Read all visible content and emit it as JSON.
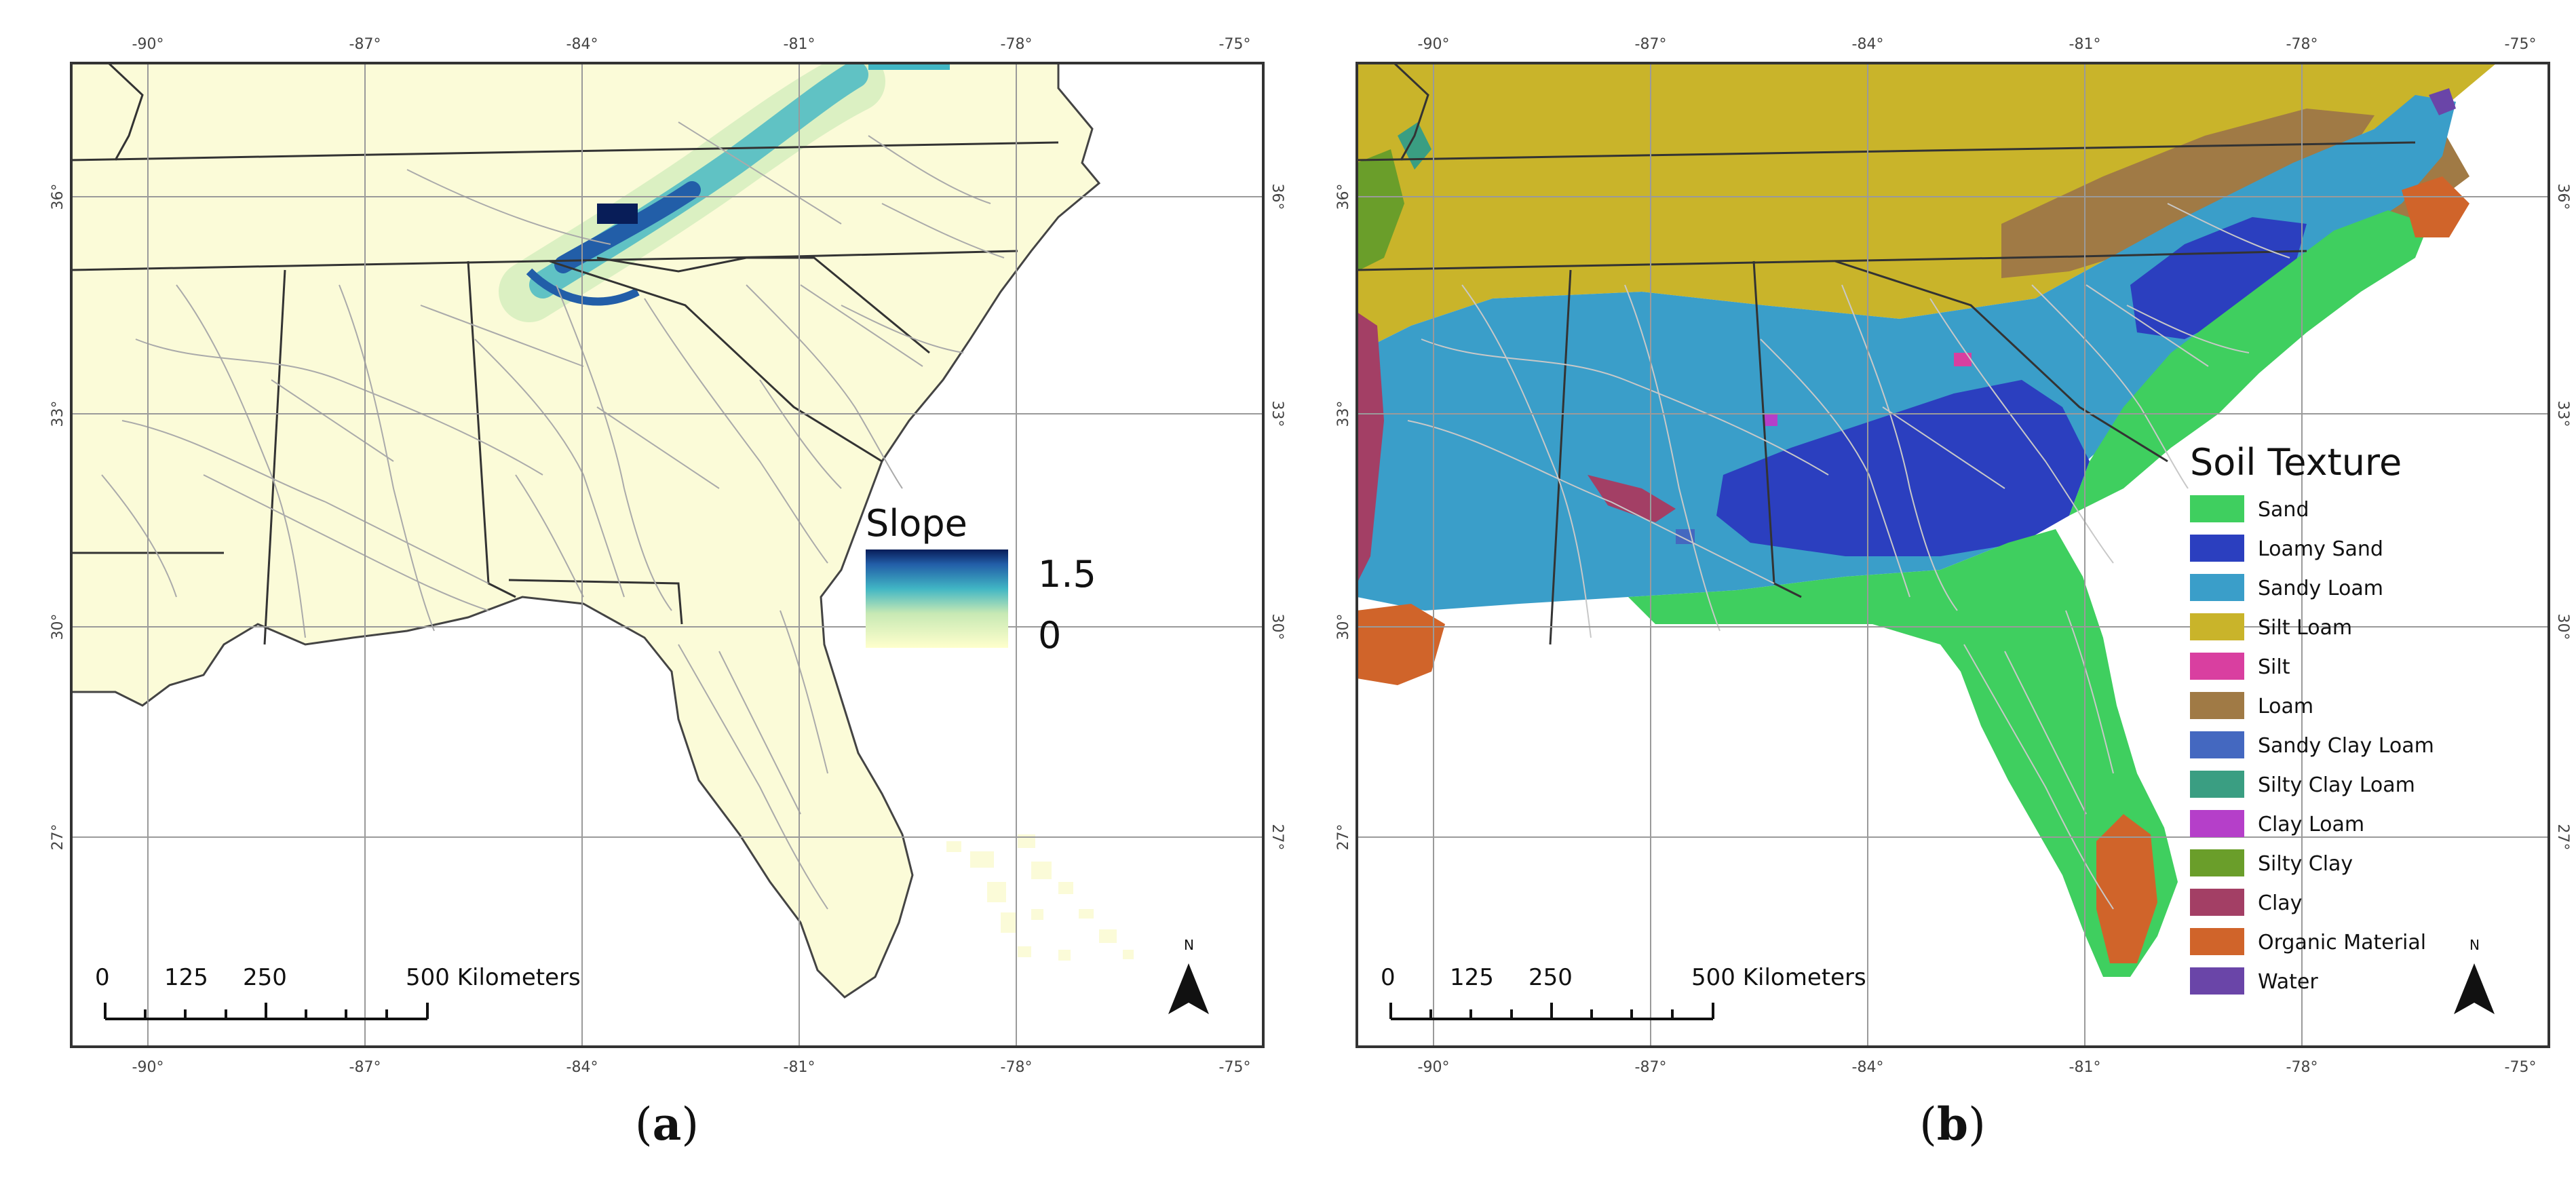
{
  "colors": {
    "frame": "#333333",
    "grid": "#9a9a9a",
    "coast": "#444444",
    "river": "#a8a8a8",
    "land_a": "#fbfbd8",
    "ocean": "#ffffff",
    "slope_low": "#ffffcc",
    "slope_mid": "#41b6c4",
    "slope_high": "#081d58"
  },
  "panels": [
    {
      "id": "a",
      "caption_open": "(",
      "caption_letter": "a",
      "caption_close": ")",
      "lon_labels": [
        "-90°",
        "-87°",
        "-84°",
        "-81°",
        "-78°",
        "-75°"
      ],
      "lat_labels": [
        "36°",
        "33°",
        "30°",
        "27°"
      ],
      "scale": {
        "ticks": [
          "0",
          "125",
          "250",
          "500 Kilometers"
        ]
      },
      "north_label": "N",
      "legend": {
        "title": "Slope",
        "max_label": "1.5",
        "min_label": "0",
        "range": [
          0,
          1.5
        ]
      }
    },
    {
      "id": "b",
      "caption_open": "(",
      "caption_letter": "b",
      "caption_close": ")",
      "lon_labels": [
        "-90°",
        "-87°",
        "-84°",
        "-81°",
        "-78°",
        "-75°"
      ],
      "lat_labels": [
        "36°",
        "33°",
        "30°",
        "27°"
      ],
      "scale": {
        "ticks": [
          "0",
          "125",
          "250",
          "500 Kilometers"
        ]
      },
      "north_label": "N",
      "legend": {
        "title": "Soil Texture",
        "items": [
          {
            "label": "Sand",
            "color": "#3fcf5f"
          },
          {
            "label": "Loamy Sand",
            "color": "#2b3fbf"
          },
          {
            "label": "Sandy Loam",
            "color": "#3a9ec9"
          },
          {
            "label": "Silt Loam",
            "color": "#c9b42a"
          },
          {
            "label": "Silt",
            "color": "#d93fa0"
          },
          {
            "label": "Loam",
            "color": "#a07a45"
          },
          {
            "label": "Sandy Clay Loam",
            "color": "#4468c0"
          },
          {
            "label": "Silty Clay Loam",
            "color": "#3a9e82"
          },
          {
            "label": "Clay Loam",
            "color": "#b53fc9"
          },
          {
            "label": "Silty Clay",
            "color": "#6a9e2a"
          },
          {
            "label": "Clay",
            "color": "#a33f65"
          },
          {
            "label": "Organic Material",
            "color": "#d0642a"
          },
          {
            "label": "Water",
            "color": "#6a45a8"
          }
        ]
      }
    }
  ]
}
